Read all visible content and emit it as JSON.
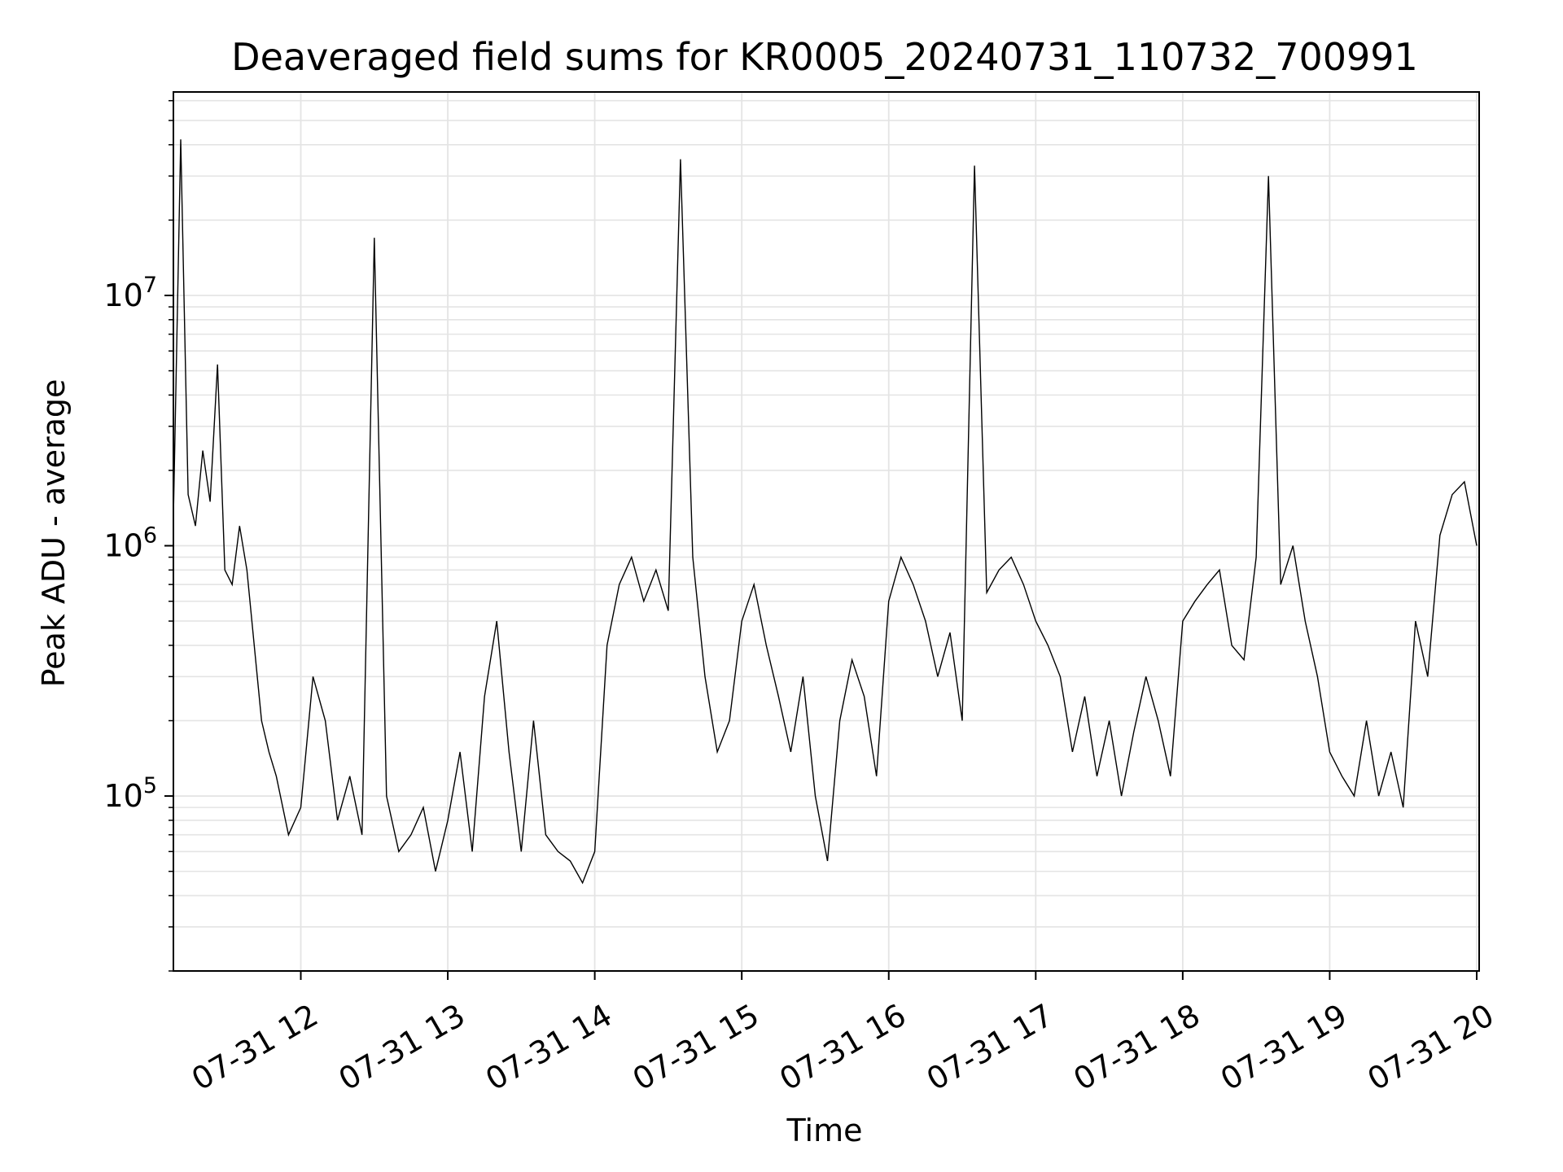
{
  "chart_data": {
    "type": "line",
    "title": "Deaveraged field sums for KR0005_20240731_110732_700991",
    "xlabel": "Time",
    "ylabel": "Peak ADU - average",
    "y_scale": "log",
    "ylim": [
      20000,
      65000000
    ],
    "xlim": [
      "2024-07-31 11:08",
      "2024-07-31 20:01"
    ],
    "grid": true,
    "line_color": "#000000",
    "x_ticks": [
      {
        "time": "2024-07-31 12:00",
        "label": "07-31 12"
      },
      {
        "time": "2024-07-31 13:00",
        "label": "07-31 13"
      },
      {
        "time": "2024-07-31 14:00",
        "label": "07-31 14"
      },
      {
        "time": "2024-07-31 15:00",
        "label": "07-31 15"
      },
      {
        "time": "2024-07-31 16:00",
        "label": "07-31 16"
      },
      {
        "time": "2024-07-31 17:00",
        "label": "07-31 17"
      },
      {
        "time": "2024-07-31 18:00",
        "label": "07-31 18"
      },
      {
        "time": "2024-07-31 19:00",
        "label": "07-31 19"
      },
      {
        "time": "2024-07-31 20:00",
        "label": "07-31 20"
      }
    ],
    "y_ticks": [
      {
        "value": 100000,
        "base": "10",
        "exp": "5"
      },
      {
        "value": 1000000,
        "base": "10",
        "exp": "6"
      },
      {
        "value": 10000000,
        "base": "10",
        "exp": "7"
      }
    ],
    "series": [
      {
        "x": [
          "2024-07-31 11:08",
          "2024-07-31 11:11",
          "2024-07-31 11:14",
          "2024-07-31 11:17",
          "2024-07-31 11:20",
          "2024-07-31 11:23",
          "2024-07-31 11:26",
          "2024-07-31 11:29",
          "2024-07-31 11:32",
          "2024-07-31 11:35",
          "2024-07-31 11:38",
          "2024-07-31 11:41",
          "2024-07-31 11:44",
          "2024-07-31 11:47",
          "2024-07-31 11:50",
          "2024-07-31 11:55",
          "2024-07-31 12:00",
          "2024-07-31 12:05",
          "2024-07-31 12:10",
          "2024-07-31 12:15",
          "2024-07-31 12:20",
          "2024-07-31 12:25",
          "2024-07-31 12:30",
          "2024-07-31 12:35",
          "2024-07-31 12:40",
          "2024-07-31 12:45",
          "2024-07-31 12:50",
          "2024-07-31 12:55",
          "2024-07-31 13:00",
          "2024-07-31 13:05",
          "2024-07-31 13:10",
          "2024-07-31 13:15",
          "2024-07-31 13:20",
          "2024-07-31 13:25",
          "2024-07-31 13:30",
          "2024-07-31 13:35",
          "2024-07-31 13:40",
          "2024-07-31 13:45",
          "2024-07-31 13:50",
          "2024-07-31 13:55",
          "2024-07-31 14:00",
          "2024-07-31 14:05",
          "2024-07-31 14:10",
          "2024-07-31 14:15",
          "2024-07-31 14:20",
          "2024-07-31 14:25",
          "2024-07-31 14:30",
          "2024-07-31 14:35",
          "2024-07-31 14:40",
          "2024-07-31 14:45",
          "2024-07-31 14:50",
          "2024-07-31 14:55",
          "2024-07-31 15:00",
          "2024-07-31 15:05",
          "2024-07-31 15:10",
          "2024-07-31 15:15",
          "2024-07-31 15:20",
          "2024-07-31 15:25",
          "2024-07-31 15:30",
          "2024-07-31 15:35",
          "2024-07-31 15:40",
          "2024-07-31 15:45",
          "2024-07-31 15:50",
          "2024-07-31 15:55",
          "2024-07-31 16:00",
          "2024-07-31 16:05",
          "2024-07-31 16:10",
          "2024-07-31 16:15",
          "2024-07-31 16:20",
          "2024-07-31 16:25",
          "2024-07-31 16:30",
          "2024-07-31 16:35",
          "2024-07-31 16:40",
          "2024-07-31 16:45",
          "2024-07-31 16:50",
          "2024-07-31 16:55",
          "2024-07-31 17:00",
          "2024-07-31 17:05",
          "2024-07-31 17:10",
          "2024-07-31 17:15",
          "2024-07-31 17:20",
          "2024-07-31 17:25",
          "2024-07-31 17:30",
          "2024-07-31 17:35",
          "2024-07-31 17:40",
          "2024-07-31 17:45",
          "2024-07-31 17:50",
          "2024-07-31 17:55",
          "2024-07-31 18:00",
          "2024-07-31 18:05",
          "2024-07-31 18:10",
          "2024-07-31 18:15",
          "2024-07-31 18:20",
          "2024-07-31 18:25",
          "2024-07-31 18:30",
          "2024-07-31 18:35",
          "2024-07-31 18:40",
          "2024-07-31 18:45",
          "2024-07-31 18:50",
          "2024-07-31 18:55",
          "2024-07-31 19:00",
          "2024-07-31 19:05",
          "2024-07-31 19:10",
          "2024-07-31 19:15",
          "2024-07-31 19:20",
          "2024-07-31 19:25",
          "2024-07-31 19:30",
          "2024-07-31 19:35",
          "2024-07-31 19:40",
          "2024-07-31 19:45",
          "2024-07-31 19:50",
          "2024-07-31 19:55",
          "2024-07-31 20:00"
        ],
        "y": [
          1300000,
          42000000,
          1600000,
          1200000,
          2400000,
          1500000,
          5300000,
          800000,
          700000,
          1200000,
          800000,
          400000,
          200000,
          150000,
          120000,
          70000,
          90000,
          300000,
          200000,
          80000,
          120000,
          70000,
          17000000,
          100000,
          60000,
          70000,
          90000,
          50000,
          80000,
          150000,
          60000,
          250000,
          500000,
          150000,
          60000,
          200000,
          70000,
          60000,
          55000,
          45000,
          60000,
          400000,
          700000,
          900000,
          600000,
          800000,
          550000,
          35000000,
          900000,
          300000,
          150000,
          200000,
          500000,
          700000,
          400000,
          250000,
          150000,
          300000,
          100000,
          55000,
          200000,
          350000,
          250000,
          120000,
          600000,
          900000,
          700000,
          500000,
          300000,
          450000,
          200000,
          33000000,
          650000,
          800000,
          900000,
          700000,
          500000,
          400000,
          300000,
          150000,
          250000,
          120000,
          200000,
          100000,
          180000,
          300000,
          200000,
          120000,
          500000,
          600000,
          700000,
          800000,
          400000,
          350000,
          900000,
          30000000,
          700000,
          1000000,
          500000,
          300000,
          150000,
          120000,
          100000,
          200000,
          100000,
          150000,
          90000,
          500000,
          300000,
          1100000,
          1600000,
          1800000,
          1000000
        ]
      }
    ]
  }
}
